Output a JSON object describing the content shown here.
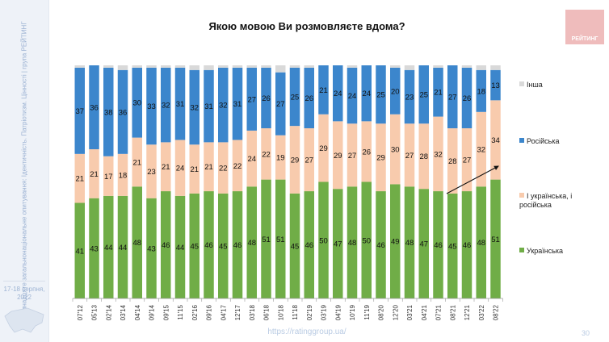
{
  "sidebar": {
    "survey_text": "Сімнадцяте загальнонаціональне опитування: Ідентичність. Патріотизм. Цінності | група РЕЙТИНГ",
    "date": "17-18 серпня, 2022"
  },
  "logo_text": "РЕЙТИНГ",
  "footer": {
    "url": "https://ratinggroup.ua/",
    "page": "30"
  },
  "colors": {
    "ukrainian": "#70ad47",
    "both": "#f8cbad",
    "russian": "#3c86cc",
    "other": "#d9d9d9"
  },
  "chart_data": {
    "type": "bar",
    "stacked": true,
    "title": "Якою мовою Ви розмовляєте вдома?",
    "ylim": [
      0,
      100
    ],
    "legend_position": "right",
    "categories": [
      "07'12",
      "05'13",
      "02'14",
      "03'14",
      "04'14",
      "09'14",
      "09'15",
      "11'15",
      "02'16",
      "09'16",
      "04'17",
      "12'17",
      "03'18",
      "06'18",
      "10'18",
      "11'18",
      "02'19",
      "03'19",
      "04'19",
      "10'19",
      "11'19",
      "08'20",
      "12'20",
      "03'21",
      "04'21",
      "07'21",
      "08'21",
      "12'21",
      "03'22",
      "08'22"
    ],
    "series": [
      {
        "name": "Українська",
        "key": "ukrainian",
        "values": [
          41,
          43,
          44,
          44,
          48,
          43,
          46,
          44,
          45,
          46,
          45,
          46,
          48,
          51,
          51,
          45,
          46,
          50,
          47,
          48,
          50,
          46,
          49,
          48,
          47,
          46,
          45,
          46,
          48,
          51
        ]
      },
      {
        "name": "І українська, і російська",
        "key": "both",
        "values": [
          21,
          21,
          17,
          18,
          21,
          23,
          21,
          24,
          21,
          21,
          22,
          22,
          24,
          22,
          19,
          29,
          27,
          29,
          29,
          27,
          26,
          29,
          30,
          27,
          28,
          32,
          28,
          27,
          32,
          34
        ]
      },
      {
        "name": "Російська",
        "key": "russian",
        "values": [
          37,
          36,
          38,
          36,
          30,
          33,
          32,
          31,
          32,
          31,
          32,
          31,
          27,
          26,
          27,
          25,
          26,
          21,
          24,
          24,
          24,
          25,
          20,
          23,
          25,
          21,
          27,
          26,
          18,
          13
        ]
      },
      {
        "name": "Інша",
        "key": "other",
        "values": [
          1,
          0,
          1,
          2,
          1,
          1,
          1,
          1,
          2,
          2,
          1,
          1,
          1,
          1,
          3,
          1,
          1,
          0,
          0,
          1,
          0,
          0,
          1,
          2,
          0,
          1,
          0,
          1,
          2,
          2
        ]
      }
    ],
    "annotation": "arrow indicating rise of bilingual share from 08'21 to 08'22"
  }
}
